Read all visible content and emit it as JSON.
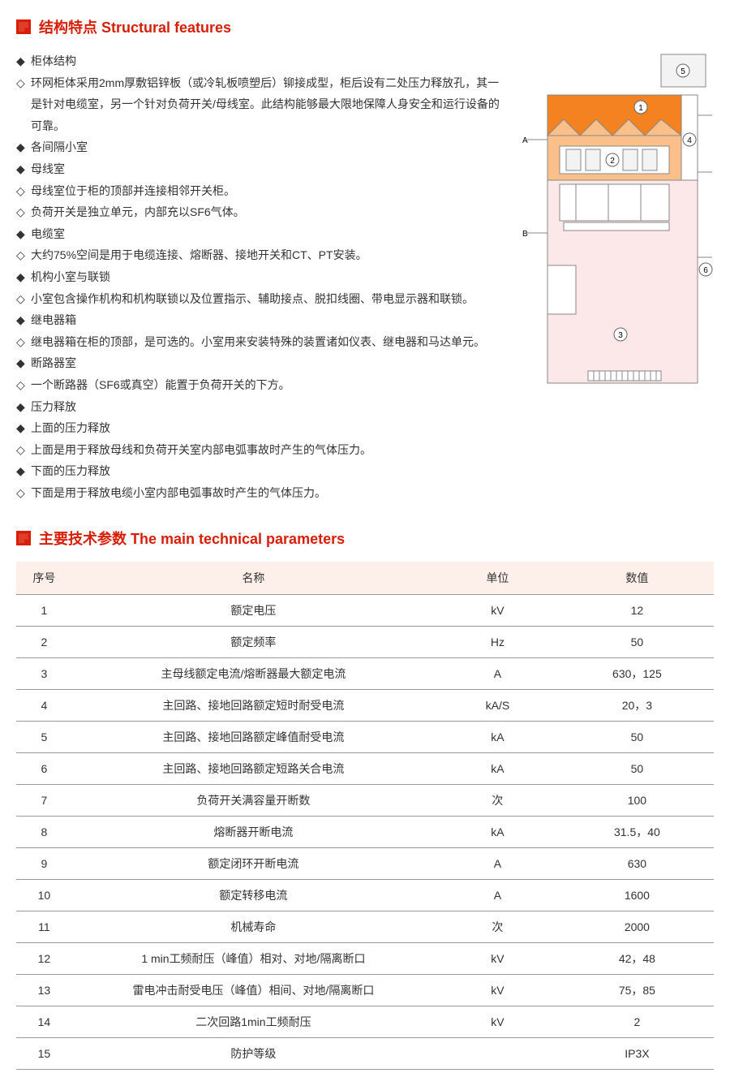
{
  "section1": {
    "title": "结构特点 Structural features"
  },
  "section2": {
    "title": "主要技术参数 The main technical parameters"
  },
  "features": [
    {
      "bullet": "◆",
      "text": "柜体结构"
    },
    {
      "bullet": "◇",
      "text": "环网柜体采用2mm厚敷铝锌板（或冷轧板喷塑后）铆接成型，柜后设有二处压力释放孔，其一是针对电缆室，另一个针对负荷开关/母线室。此结构能够最大限地保障人身安全和运行设备的可靠。"
    },
    {
      "bullet": "◆",
      "text": "各间隔小室"
    },
    {
      "bullet": "◆",
      "text": "母线室"
    },
    {
      "bullet": "◇",
      "text": "母线室位于柜的顶部并连接相邻开关柜。"
    },
    {
      "bullet": "◇",
      "text": "负荷开关是独立单元，内部充以SF6气体。"
    },
    {
      "bullet": "◆",
      "text": "电缆室"
    },
    {
      "bullet": "◇",
      "text": "大约75%空间是用于电缆连接、熔断器、接地开关和CT、PT安装。"
    },
    {
      "bullet": "◆",
      "text": "机构小室与联锁"
    },
    {
      "bullet": "◇",
      "text": "小室包含操作机构和机构联锁以及位置指示、辅助接点、脱扣线圈、带电显示器和联锁。"
    },
    {
      "bullet": "◆",
      "text": "继电器箱"
    },
    {
      "bullet": "◇",
      "text": "继电器箱在柜的顶部，是可选的。小室用来安装特殊的装置诸如仪表、继电器和马达单元。"
    },
    {
      "bullet": "◆",
      "text": "断路器室"
    },
    {
      "bullet": "◇",
      "text": "一个断路器（SF6或真空）能置于负荷开关的下方。"
    },
    {
      "bullet": "◆",
      "text": "压力释放"
    },
    {
      "bullet": "◆",
      "text": "上面的压力释放"
    },
    {
      "bullet": "◇",
      "text": "上面是用于释放母线和负荷开关室内部电弧事故时产生的气体压力。"
    },
    {
      "bullet": "◆",
      "text": "下面的压力释放"
    },
    {
      "bullet": "◇",
      "text": "下面是用于释放电缆小室内部电弧事故时产生的气体压力。"
    }
  ],
  "diagram": {
    "colors": {
      "outline": "#888888",
      "orange": "#f58220",
      "light_orange": "#fbbf8a",
      "pink": "#fce8e8",
      "grey_fill": "#f3f3f3",
      "white": "#ffffff",
      "label_stroke": "#666666"
    },
    "labels": {
      "n1": "1",
      "n2": "2",
      "n3": "3",
      "n4": "4",
      "n5": "5",
      "n6": "6",
      "A": "A",
      "B": "B"
    }
  },
  "table": {
    "headers": {
      "idx": "序号",
      "name": "名称",
      "unit": "单位",
      "val": "数值"
    },
    "rows": [
      {
        "idx": "1",
        "name": "额定电压",
        "unit": "kV",
        "val": "12"
      },
      {
        "idx": "2",
        "name": "额定频率",
        "unit": "Hz",
        "val": "50"
      },
      {
        "idx": "3",
        "name": "主母线额定电流/熔断器最大额定电流",
        "unit": "A",
        "val": "630，125"
      },
      {
        "idx": "4",
        "name": "主回路、接地回路额定短时耐受电流",
        "unit": "kA/S",
        "val": "20，3"
      },
      {
        "idx": "5",
        "name": "主回路、接地回路额定峰值耐受电流",
        "unit": "kA",
        "val": "50"
      },
      {
        "idx": "6",
        "name": "主回路、接地回路额定短路关合电流",
        "unit": "kA",
        "val": "50"
      },
      {
        "idx": "7",
        "name": "负荷开关满容量开断数",
        "unit": "次",
        "val": "100"
      },
      {
        "idx": "8",
        "name": "熔断器开断电流",
        "unit": "kA",
        "val": "31.5，40"
      },
      {
        "idx": "9",
        "name": "额定闭环开断电流",
        "unit": "A",
        "val": "630"
      },
      {
        "idx": "10",
        "name": "额定转移电流",
        "unit": "A",
        "val": "1600"
      },
      {
        "idx": "11",
        "name": "机械寿命",
        "unit": "次",
        "val": "2000"
      },
      {
        "idx": "12",
        "name": "1 min工频耐压（峰值）相对、对地/隔离断口",
        "unit": "kV",
        "val": "42，48"
      },
      {
        "idx": "13",
        "name": "雷电冲击耐受电压（峰值）相间、对地/隔离断口",
        "unit": "kV",
        "val": "75，85"
      },
      {
        "idx": "14",
        "name": "二次回路1min工频耐压",
        "unit": "kV",
        "val": "2"
      },
      {
        "idx": "15",
        "name": "防护等级",
        "unit": "",
        "val": "IP3X"
      }
    ]
  }
}
